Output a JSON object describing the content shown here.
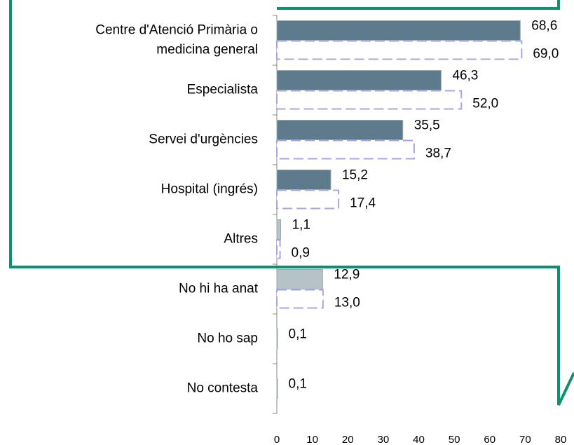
{
  "chart_data": {
    "type": "bar",
    "orientation": "horizontal",
    "categories": [
      [
        "Centre d'Atenció Primària o",
        "medicina general"
      ],
      "Especialista",
      "Servei d'urgències",
      "Hospital (ingrés)",
      "Altres",
      "No hi ha anat",
      "No ho sap",
      "No contesta"
    ],
    "series": [
      {
        "colors": [
          "#5d7b8d",
          "#5d7b8d",
          "#5d7b8d",
          "#5d7b8d",
          "#b7c1c8",
          "#b7c1c8",
          "#b7c1c8",
          "#b7c1c8"
        ],
        "style": "solid",
        "values": [
          68.6,
          46.3,
          35.5,
          15.2,
          1.1,
          12.9,
          0.1,
          0.1
        ],
        "value_labels": [
          "68,6",
          "46,3",
          "35,5",
          "15,2",
          "1,1",
          "12,9",
          "0,1",
          "0,1"
        ]
      },
      {
        "color": "#a9a4e6",
        "style": "dashed",
        "values": [
          69.0,
          52.0,
          38.7,
          17.4,
          0.9,
          13.0,
          null,
          null
        ],
        "value_labels": [
          "69,0",
          "52,0",
          "38,7",
          "17,4",
          "0,9",
          "13,0",
          null,
          null
        ]
      }
    ],
    "xlim": [
      0,
      80
    ],
    "xticks": [
      0,
      10,
      20,
      30,
      40,
      50,
      60,
      70,
      80
    ]
  }
}
